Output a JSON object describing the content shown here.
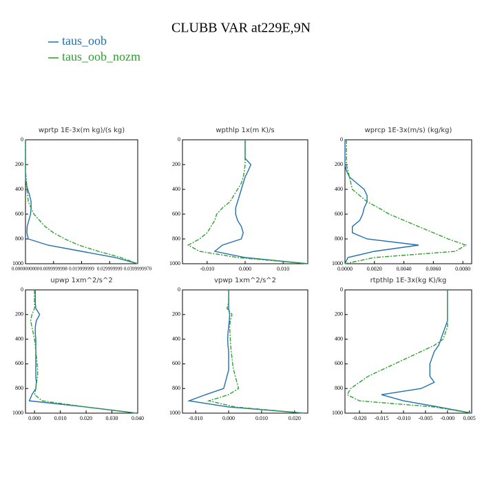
{
  "title": "CLUBB VAR at229E,9N",
  "legend": [
    {
      "name": "taus_oob",
      "color": "#1f6fb0"
    },
    {
      "name": "taus_oob_nozm",
      "color": "#2ca02c"
    }
  ],
  "chart_data": [
    {
      "type": "line",
      "title": "wprtp   1E-3x(m kg)/(s kg)",
      "y": [
        0,
        50,
        100,
        150,
        200,
        250,
        300,
        350,
        400,
        450,
        500,
        550,
        600,
        650,
        700,
        750,
        800,
        850,
        900,
        950,
        1000
      ],
      "ylim": [
        0,
        1000
      ],
      "yticks": [
        0,
        200,
        400,
        600,
        800,
        1000
      ],
      "yinvert": true,
      "xlim": [
        0,
        0.04
      ],
      "xticks": [
        {
          "value": 0,
          "label": "0.0000000000"
        },
        {
          "value": 0.01,
          "label": "0.0099999998"
        },
        {
          "value": 0.02,
          "label": "0.019999999"
        },
        {
          "value": 0.03,
          "label": "0.029999999"
        },
        {
          "value": 0.04,
          "label": "0.0399999970"
        }
      ],
      "series": [
        {
          "values": [
            0,
            0,
            0,
            0,
            0,
            0,
            0,
            0.0002,
            0.0008,
            0.0015,
            0.002,
            0.002,
            0.0018,
            0.0012,
            0.0006,
            0.0005,
            0.001,
            0.008,
            0.02,
            0.032,
            0.04
          ]
        },
        {
          "values": [
            0,
            0,
            0,
            0,
            0,
            0,
            0.0002,
            0.0004,
            0.0005,
            0.0008,
            0.001,
            0.002,
            0.003,
            0.005,
            0.007,
            0.01,
            0.014,
            0.019,
            0.026,
            0.034,
            0.04
          ]
        }
      ]
    },
    {
      "type": "line",
      "title": "wpthlp   1x(m K)/s",
      "y": [
        0,
        50,
        100,
        150,
        200,
        250,
        300,
        350,
        400,
        450,
        500,
        550,
        600,
        650,
        700,
        750,
        800,
        850,
        900,
        950,
        1000
      ],
      "ylim": [
        0,
        1000
      ],
      "yticks": [
        0,
        200,
        400,
        600,
        800,
        1000
      ],
      "yinvert": true,
      "xlim": [
        -0.0165,
        0.0165
      ],
      "xticks": [
        {
          "value": -0.01,
          "label": "-0.010"
        },
        {
          "value": 0,
          "label": "0.000"
        },
        {
          "value": 0.01,
          "label": "0.010"
        }
      ],
      "series": [
        {
          "values": [
            0,
            0,
            0,
            0,
            0.0015,
            0.0008,
            0,
            -0.0005,
            -0.001,
            -0.0015,
            -0.002,
            -0.0025,
            -0.0025,
            -0.002,
            -0.001,
            -0.0005,
            -0.001,
            -0.006,
            -0.008,
            0,
            0.0165
          ]
        },
        {
          "values": [
            0,
            0,
            0,
            0,
            0,
            -0.0002,
            -0.0005,
            -0.001,
            -0.002,
            -0.003,
            -0.004,
            -0.006,
            -0.0075,
            -0.008,
            -0.009,
            -0.01,
            -0.012,
            -0.015,
            -0.012,
            -0.002,
            0.0165
          ]
        }
      ]
    },
    {
      "type": "line",
      "title": "wprcp   1E-3x(m/s) (kg/kg)",
      "y": [
        0,
        50,
        100,
        150,
        200,
        250,
        300,
        350,
        400,
        450,
        500,
        550,
        600,
        650,
        700,
        750,
        800,
        850,
        900,
        950,
        1000
      ],
      "ylim": [
        0,
        1000
      ],
      "yticks": [
        0,
        200,
        400,
        600,
        800,
        1000
      ],
      "yinvert": true,
      "xlim": [
        0,
        0.0086
      ],
      "xticks": [
        {
          "value": 0,
          "label": "0.0000"
        },
        {
          "value": 0.002,
          "label": "0.0020"
        },
        {
          "value": 0.004,
          "label": "0.0040"
        },
        {
          "value": 0.006,
          "label": "0.0060"
        },
        {
          "value": 0.008,
          "label": "0.0080"
        }
      ],
      "series": [
        {
          "values": [
            0,
            0,
            0,
            0,
            0,
            0.0001,
            0.0003,
            0.0008,
            0.0013,
            0.0015,
            0.0015,
            0.0013,
            0.0012,
            0.001,
            0.0005,
            0.0005,
            0.0015,
            0.005,
            0.002,
            0.0002,
            0
          ]
        },
        {
          "values": [
            0.0001,
            0.0001,
            0.0001,
            0.0001,
            0.0001,
            0.0002,
            0.0003,
            0.0004,
            0.0005,
            0.001,
            0.0015,
            0.0023,
            0.003,
            0.004,
            0.005,
            0.006,
            0.007,
            0.0082,
            0.0075,
            0.002,
            0
          ]
        }
      ]
    },
    {
      "type": "line",
      "title": "upwp   1xm^2/s^2",
      "y": [
        0,
        50,
        100,
        150,
        200,
        250,
        300,
        350,
        400,
        450,
        500,
        550,
        600,
        650,
        700,
        750,
        800,
        850,
        900,
        950,
        1000
      ],
      "ylim": [
        0,
        1000
      ],
      "yticks": [
        0,
        200,
        400,
        600,
        800,
        1000
      ],
      "yinvert": true,
      "xlim": [
        -0.0035,
        0.04
      ],
      "xticks": [
        {
          "value": 0,
          "label": "0.000"
        },
        {
          "value": 0.01,
          "label": "0.010"
        },
        {
          "value": 0.02,
          "label": "0.020"
        },
        {
          "value": 0.03,
          "label": "0.030"
        },
        {
          "value": 0.04,
          "label": "0.040"
        }
      ],
      "series": [
        {
          "values": [
            0.0003,
            0.0003,
            0.0003,
            0.0005,
            0.002,
            0.0007,
            0.0003,
            0.0003,
            0.0005,
            0.0005,
            0.0005,
            0.0005,
            0.0005,
            0.0005,
            0.0005,
            0.0007,
            0.0005,
            -0.001,
            -0.002,
            0.02,
            0.0395
          ]
        },
        {
          "values": [
            0,
            0,
            0,
            0,
            -0.001,
            -0.0015,
            -0.001,
            -0.0005,
            0,
            0.0003,
            0.0005,
            0.0008,
            0.001,
            0.0012,
            0.0012,
            0.0008,
            0.0005,
            0,
            0.003,
            0.02,
            0.0395
          ]
        }
      ]
    },
    {
      "type": "line",
      "title": "vpwp   1xm^2/s^2",
      "y": [
        0,
        50,
        100,
        150,
        200,
        250,
        300,
        350,
        400,
        450,
        500,
        550,
        600,
        650,
        700,
        750,
        800,
        850,
        900,
        950,
        1000
      ],
      "ylim": [
        0,
        1000
      ],
      "yticks": [
        0,
        200,
        400,
        600,
        800,
        1000
      ],
      "yinvert": true,
      "xlim": [
        -0.014,
        0.024
      ],
      "xticks": [
        {
          "value": -0.01,
          "label": "-0.010"
        },
        {
          "value": 0,
          "label": "0.000"
        },
        {
          "value": 0.01,
          "label": "0.010"
        },
        {
          "value": 0.02,
          "label": "0.020"
        }
      ],
      "series": [
        {
          "values": [
            0,
            0,
            0,
            0,
            0.0003,
            0.0002,
            0,
            -0.0002,
            -0.0003,
            -0.0002,
            0,
            0,
            0,
            0,
            -0.0005,
            -0.001,
            -0.0015,
            -0.007,
            -0.012,
            0,
            0.023
          ]
        },
        {
          "values": [
            0,
            0,
            0,
            -0.0005,
            0.001,
            0.0005,
            0.0003,
            0.0004,
            0.0005,
            0.0006,
            0.0008,
            0.001,
            0.0012,
            0.0015,
            0.002,
            0.0025,
            0.003,
            0,
            -0.006,
            0.002,
            0.023
          ]
        }
      ]
    },
    {
      "type": "line",
      "title": "rtpthlp   1E-3x(kg K)/kg",
      "y": [
        0,
        50,
        100,
        150,
        200,
        250,
        300,
        350,
        400,
        450,
        500,
        550,
        600,
        650,
        700,
        750,
        800,
        850,
        900,
        950,
        1000
      ],
      "ylim": [
        0,
        1000
      ],
      "yticks": [
        0,
        200,
        400,
        600,
        800,
        1000
      ],
      "yinvert": true,
      "xlim": [
        -0.0233,
        0.0055
      ],
      "xticks": [
        {
          "value": -0.02,
          "label": "-0.020"
        },
        {
          "value": -0.015,
          "label": "-0.015"
        },
        {
          "value": -0.01,
          "label": "-0.010"
        },
        {
          "value": -0.005,
          "label": "-0.005"
        },
        {
          "value": 0,
          "label": "-0.000"
        },
        {
          "value": 0.005,
          "label": "0.005"
        }
      ],
      "series": [
        {
          "values": [
            0,
            0,
            0,
            0,
            0,
            0,
            -0.0005,
            -0.001,
            -0.0015,
            -0.002,
            -0.003,
            -0.0035,
            -0.004,
            -0.004,
            -0.004,
            -0.003,
            -0.006,
            -0.015,
            -0.01,
            -0.002,
            0.0055
          ]
        },
        {
          "values": [
            0,
            0,
            0,
            0,
            0,
            0,
            0,
            -0.0005,
            -0.001,
            -0.003,
            -0.006,
            -0.009,
            -0.012,
            -0.015,
            -0.018,
            -0.02,
            -0.022,
            -0.0228,
            -0.02,
            -0.003,
            0.0055
          ]
        }
      ]
    }
  ]
}
